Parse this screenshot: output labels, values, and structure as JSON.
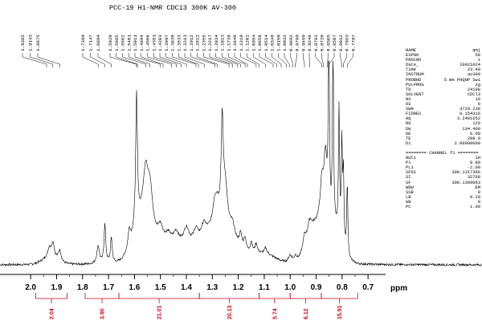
{
  "chart_data": {
    "type": "line",
    "title": "PCC-19  H1-NMR  CDC13 300K  AV-300",
    "xlabel": "ppm",
    "xlim": [
      2.05,
      0.62
    ],
    "ylim": [
      0,
      1
    ],
    "ticks": [
      {
        "v": 2.0,
        "label": "2.0"
      },
      {
        "v": 1.9,
        "label": "1.9"
      },
      {
        "v": 1.8,
        "label": "1.8"
      },
      {
        "v": 1.7,
        "label": "1.7"
      },
      {
        "v": 1.6,
        "label": "1.6"
      },
      {
        "v": 1.5,
        "label": "1.5"
      },
      {
        "v": 1.4,
        "label": "1.4"
      },
      {
        "v": 1.3,
        "label": "1.3"
      },
      {
        "v": 1.2,
        "label": "1.2"
      },
      {
        "v": 1.1,
        "label": "1.1"
      },
      {
        "v": 1.0,
        "label": "1.0"
      },
      {
        "v": 0.9,
        "label": "0.9"
      },
      {
        "v": 0.8,
        "label": "0.8"
      },
      {
        "v": 0.7,
        "label": "0.7"
      }
    ],
    "peak_labels": [
      "1.9385",
      "1.9143",
      "1.8875",
      "1.7399",
      "1.7147",
      "1.6894",
      "1.5920",
      "1.5885",
      "1.5562",
      "1.5401",
      "1.5011",
      "1.4894",
      "1.4566",
      "1.4381",
      "1.4203",
      "1.3997",
      "1.3630",
      "1.3533",
      "1.3313",
      "1.2912",
      "1.2812",
      "1.2355",
      "1.2217",
      "1.2034",
      "1.1913",
      "1.1738",
      "1.1648",
      "1.1310",
      "1.1202",
      "1.0954",
      "1.0658",
      "1.0514",
      "1.0348",
      "1.0150",
      "1.0032",
      "0.9892",
      "0.9799",
      "0.9450",
      "0.9248",
      "0.8782",
      "0.8730",
      "0.8565",
      "0.8507",
      "0.8012",
      "0.7953",
      "0.7797"
    ],
    "peaks": [
      {
        "x": 1.928,
        "h": 0.05,
        "w": 0.007
      },
      {
        "x": 1.914,
        "h": 0.08,
        "w": 0.007
      },
      {
        "x": 1.888,
        "h": 0.06,
        "w": 0.007
      },
      {
        "x": 1.74,
        "h": 0.09,
        "w": 0.006
      },
      {
        "x": 1.714,
        "h": 0.2,
        "w": 0.004
      },
      {
        "x": 1.689,
        "h": 0.13,
        "w": 0.004
      },
      {
        "x": 1.62,
        "h": 0.09,
        "w": 0.006
      },
      {
        "x": 1.592,
        "h": 0.68,
        "w": 0.004
      },
      {
        "x": 1.557,
        "h": 0.25,
        "w": 0.012
      },
      {
        "x": 1.54,
        "h": 0.2,
        "w": 0.012
      },
      {
        "x": 1.5,
        "h": 0.1,
        "w": 0.015
      },
      {
        "x": 1.47,
        "h": 0.06,
        "w": 0.015
      },
      {
        "x": 1.44,
        "h": 0.06,
        "w": 0.012
      },
      {
        "x": 1.4,
        "h": 0.08,
        "w": 0.012
      },
      {
        "x": 1.363,
        "h": 0.06,
        "w": 0.01
      },
      {
        "x": 1.333,
        "h": 0.06,
        "w": 0.01
      },
      {
        "x": 1.291,
        "h": 0.1,
        "w": 0.008
      },
      {
        "x": 1.281,
        "h": 0.08,
        "w": 0.008
      },
      {
        "x": 1.262,
        "h": 0.5,
        "w": 0.005
      },
      {
        "x": 1.25,
        "h": 0.2,
        "w": 0.01
      },
      {
        "x": 1.222,
        "h": 0.06,
        "w": 0.01
      },
      {
        "x": 1.191,
        "h": 0.07,
        "w": 0.006
      },
      {
        "x": 1.174,
        "h": 0.07,
        "w": 0.006
      },
      {
        "x": 1.15,
        "h": 0.06,
        "w": 0.006
      },
      {
        "x": 1.131,
        "h": 0.05,
        "w": 0.006
      },
      {
        "x": 1.095,
        "h": 0.03,
        "w": 0.006
      },
      {
        "x": 1.0,
        "h": 0.04,
        "w": 0.008
      },
      {
        "x": 0.98,
        "h": 0.03,
        "w": 0.006
      },
      {
        "x": 0.945,
        "h": 0.07,
        "w": 0.008
      },
      {
        "x": 0.925,
        "h": 0.08,
        "w": 0.01
      },
      {
        "x": 0.878,
        "h": 0.2,
        "w": 0.008
      },
      {
        "x": 0.864,
        "h": 0.35,
        "w": 0.008
      },
      {
        "x": 0.851,
        "h": 1.0,
        "w": 0.0025
      },
      {
        "x": 0.835,
        "h": 0.97,
        "w": 0.0025
      },
      {
        "x": 0.812,
        "h": 0.66,
        "w": 0.0025
      },
      {
        "x": 0.801,
        "h": 0.5,
        "w": 0.0025
      },
      {
        "x": 0.795,
        "h": 0.36,
        "w": 0.0025
      },
      {
        "x": 0.78,
        "h": 0.37,
        "w": 0.0025
      }
    ],
    "broad": [
      {
        "x": 1.57,
        "h": 0.2,
        "w": 0.05
      },
      {
        "x": 1.27,
        "h": 0.19,
        "w": 0.08
      },
      {
        "x": 1.42,
        "h": 0.09,
        "w": 0.1
      },
      {
        "x": 1.1,
        "h": 0.05,
        "w": 0.06
      },
      {
        "x": 0.9,
        "h": 0.18,
        "w": 0.045
      },
      {
        "x": 1.93,
        "h": 0.03,
        "w": 0.04
      },
      {
        "x": 0.83,
        "h": 0.15,
        "w": 0.04
      }
    ],
    "integrals": [
      {
        "from": 1.98,
        "to": 1.86,
        "value": "2.04"
      },
      {
        "from": 1.79,
        "to": 1.66,
        "value": "3.90"
      },
      {
        "from": 1.66,
        "to": 1.35,
        "value": "21.01"
      },
      {
        "from": 1.35,
        "to": 1.12,
        "value": "20.13"
      },
      {
        "from": 1.12,
        "to": 1.0,
        "value": "5.74"
      },
      {
        "from": 1.0,
        "to": 0.88,
        "value": "6.12"
      },
      {
        "from": 0.88,
        "to": 0.74,
        "value": "15.91"
      }
    ]
  },
  "params": {
    "block1": [
      [
        "NAME",
        "qmj"
      ],
      [
        "EXPNO",
        "58"
      ],
      [
        "PROCNO",
        "1"
      ],
      [
        "Date_",
        "20021024"
      ],
      [
        "Time",
        "23.40"
      ],
      [
        "INSTRUM",
        "av300"
      ],
      [
        "PROBHD",
        "5 mm PHQNP Swi"
      ],
      [
        "PULPROG",
        "zg"
      ],
      [
        "TD",
        "24108"
      ],
      [
        "SOLVENT",
        "CDCl3"
      ],
      [
        "NS",
        "16"
      ],
      [
        "DS",
        "0"
      ],
      [
        "SWH",
        "3720.238"
      ],
      [
        "FIDRES",
        "0.154316"
      ],
      [
        "AQ",
        "3.2401652"
      ],
      [
        "RG",
        "120"
      ],
      [
        "DW",
        "134.400"
      ],
      [
        "DE",
        "6.00"
      ],
      [
        "TE",
        "298.0"
      ],
      [
        "D1",
        "2.00000000"
      ]
    ],
    "channel_header": "======== CHANNEL f1 ========",
    "block2": [
      [
        "NUC1",
        "1H"
      ],
      [
        "P1",
        "8.80"
      ],
      [
        "PL1",
        "-2.00"
      ],
      [
        "SFO1",
        "300.1317366"
      ],
      [
        "SI",
        "32768"
      ],
      [
        "SF",
        "300.1300063"
      ],
      [
        "WDW",
        "EM"
      ],
      [
        "SSB",
        "0"
      ],
      [
        "LB",
        "0.20"
      ],
      [
        "GB",
        "0"
      ],
      [
        "PC",
        "1.00"
      ]
    ]
  },
  "colors": {
    "spectrum": "#000000",
    "integral": "#d0021b"
  }
}
